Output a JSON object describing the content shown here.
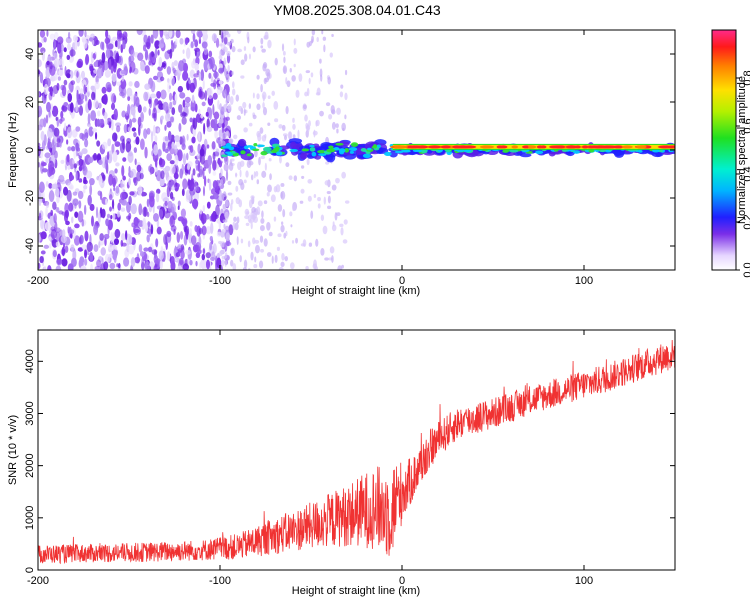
{
  "title": "YM08.2025.308.04.01.C43",
  "chart_data": [
    {
      "type": "heatmap",
      "xlabel": "Height of straight line (km)",
      "ylabel": "Frequency (Hz)",
      "xlim": [
        -200,
        150
      ],
      "ylim": [
        -50,
        50
      ],
      "x_ticks": [
        -200,
        -100,
        0,
        100
      ],
      "y_ticks": [
        -40,
        -20,
        0,
        20,
        40
      ],
      "colorbar": {
        "label": "Normalized spectral amplitude",
        "range": [
          0,
          1
        ],
        "ticks": [
          0.0,
          0.2,
          0.4,
          0.6,
          0.8
        ],
        "tick_labels": [
          "0.0",
          "0.2",
          "0.4",
          "0.6",
          "0.8"
        ]
      },
      "features": {
        "noise_region_km": [
          -200,
          -100
        ],
        "strong_band_start_km": -100,
        "band_center_freq_hz": 0
      }
    },
    {
      "type": "line",
      "xlabel": "Height of straight line (km)",
      "ylabel": "SNR (10 * v/v)",
      "xlim": [
        -200,
        150
      ],
      "ylim": [
        0,
        4600
      ],
      "x_ticks": [
        -200,
        -100,
        0,
        100
      ],
      "y_ticks": [
        0,
        1000,
        2000,
        3000,
        4000
      ],
      "series": [
        {
          "name": "SNR",
          "color": "#f03232",
          "x": [
            -200,
            -170,
            -140,
            -110,
            -90,
            -70,
            -50,
            -30,
            -15,
            -7,
            -3,
            0,
            5,
            10,
            15,
            20,
            30,
            50,
            70,
            90,
            110,
            130,
            150
          ],
          "y": [
            300,
            320,
            340,
            380,
            450,
            650,
            850,
            1050,
            1200,
            1100,
            1300,
            1500,
            1700,
            2000,
            2300,
            2500,
            2800,
            3000,
            3250,
            3450,
            3650,
            3900,
            4150
          ],
          "noise_amplitude": [
            180,
            180,
            190,
            200,
            250,
            350,
            450,
            600,
            800,
            900,
            850,
            600,
            450,
            400,
            380,
            350,
            320,
            300,
            280,
            280,
            280,
            280,
            300
          ]
        }
      ]
    }
  ]
}
